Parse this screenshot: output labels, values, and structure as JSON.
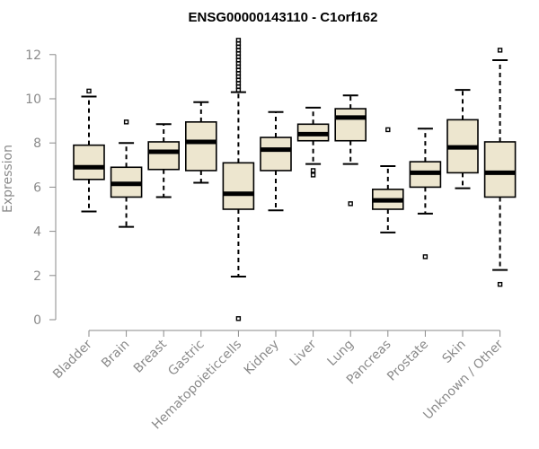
{
  "chart_data": {
    "type": "boxplot",
    "title": "ENSG00000143110 - C1orf162",
    "xlabel": "",
    "ylabel": "Expression",
    "ylim": [
      0,
      12
    ],
    "yticks": [
      0,
      2,
      4,
      6,
      8,
      10,
      12
    ],
    "grid": false,
    "box_color": "#ede6cf",
    "categories": [
      "Bladder",
      "Brain",
      "Breast",
      "Gastric",
      "Hematopoieticcells",
      "Kidney",
      "Liver",
      "Lung",
      "Pancreas",
      "Prostate",
      "Skin",
      "Unknown / Other"
    ],
    "boxes": [
      {
        "category": "Bladder",
        "whisker_low": 4.9,
        "q1": 6.35,
        "median": 6.9,
        "q3": 7.9,
        "whisker_high": 10.1,
        "outliers": [
          10.35
        ]
      },
      {
        "category": "Brain",
        "whisker_low": 4.2,
        "q1": 5.55,
        "median": 6.15,
        "q3": 6.9,
        "whisker_high": 8.0,
        "outliers": [
          8.95
        ]
      },
      {
        "category": "Breast",
        "whisker_low": 5.55,
        "q1": 6.8,
        "median": 7.6,
        "q3": 8.05,
        "whisker_high": 8.85,
        "outliers": []
      },
      {
        "category": "Gastric",
        "whisker_low": 6.2,
        "q1": 6.75,
        "median": 8.05,
        "q3": 8.95,
        "whisker_high": 9.85,
        "outliers": []
      },
      {
        "category": "Hematopoieticcells",
        "whisker_low": 1.95,
        "q1": 5.0,
        "median": 5.7,
        "q3": 7.1,
        "whisker_high": 10.3,
        "outliers": [
          0.05,
          10.4,
          10.55,
          10.7,
          10.85,
          11.0,
          11.15,
          11.3,
          11.45,
          11.6,
          11.75,
          11.9,
          12.05,
          12.2,
          12.35,
          12.5,
          12.65
        ]
      },
      {
        "category": "Kidney",
        "whisker_low": 4.95,
        "q1": 6.75,
        "median": 7.7,
        "q3": 8.25,
        "whisker_high": 9.4,
        "outliers": []
      },
      {
        "category": "Liver",
        "whisker_low": 7.05,
        "q1": 8.1,
        "median": 8.4,
        "q3": 8.85,
        "whisker_high": 9.6,
        "outliers": [
          6.55,
          6.75
        ]
      },
      {
        "category": "Lung",
        "whisker_low": 7.05,
        "q1": 8.1,
        "median": 9.15,
        "q3": 9.55,
        "whisker_high": 10.15,
        "outliers": [
          5.25
        ]
      },
      {
        "category": "Pancreas",
        "whisker_low": 3.95,
        "q1": 5.0,
        "median": 5.4,
        "q3": 5.9,
        "whisker_high": 6.95,
        "outliers": [
          8.6
        ]
      },
      {
        "category": "Prostate",
        "whisker_low": 4.8,
        "q1": 6.0,
        "median": 6.65,
        "q3": 7.15,
        "whisker_high": 8.65,
        "outliers": [
          2.85
        ]
      },
      {
        "category": "Skin",
        "whisker_low": 5.95,
        "q1": 6.65,
        "median": 7.8,
        "q3": 9.05,
        "whisker_high": 10.4,
        "outliers": []
      },
      {
        "category": "Unknown / Other",
        "whisker_low": 2.25,
        "q1": 5.55,
        "median": 6.65,
        "q3": 8.05,
        "whisker_high": 11.75,
        "outliers": [
          1.6,
          12.2
        ]
      }
    ]
  }
}
